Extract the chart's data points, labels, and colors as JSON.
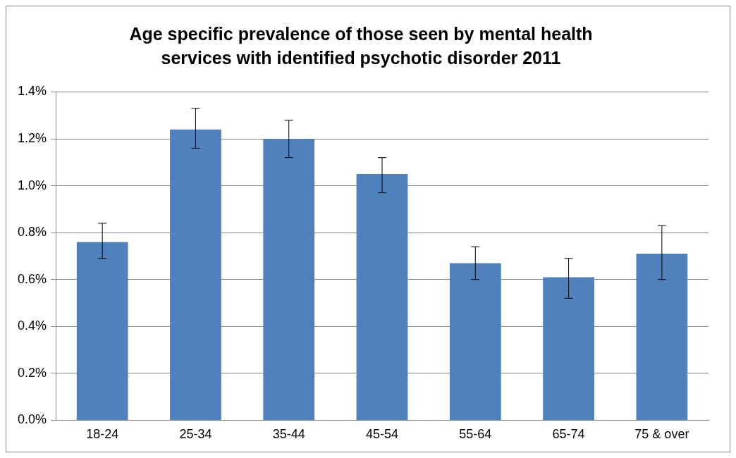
{
  "chart_data": {
    "type": "bar",
    "title": "Age specific prevalence of those seen by mental health services with identified psychotic disorder 2011",
    "categories": [
      "18-24",
      "25-34",
      "35-44",
      "45-54",
      "55-64",
      "65-74",
      "75 & over"
    ],
    "values": [
      0.76,
      1.24,
      1.2,
      1.05,
      0.67,
      0.61,
      0.71
    ],
    "errors": [
      [
        0.69,
        0.84
      ],
      [
        1.16,
        1.33
      ],
      [
        1.12,
        1.28
      ],
      [
        0.97,
        1.12
      ],
      [
        0.6,
        0.74
      ],
      [
        0.52,
        0.69
      ],
      [
        0.6,
        0.83
      ]
    ],
    "color": "#4f81bd",
    "ylim": [
      0,
      1.4
    ],
    "yticks": [
      {
        "value": 0,
        "label": "0.0%"
      },
      {
        "value": 0.2,
        "label": "0.2%"
      },
      {
        "value": 0.4,
        "label": "0.4%"
      },
      {
        "value": 0.6,
        "label": "0.6%"
      },
      {
        "value": 0.8,
        "label": "0.8%"
      },
      {
        "value": 1,
        "label": "1.0%"
      },
      {
        "value": 1.2,
        "label": "1.2%"
      },
      {
        "value": 1.4,
        "label": "1.4%"
      }
    ],
    "grid": "y",
    "legend": false
  }
}
